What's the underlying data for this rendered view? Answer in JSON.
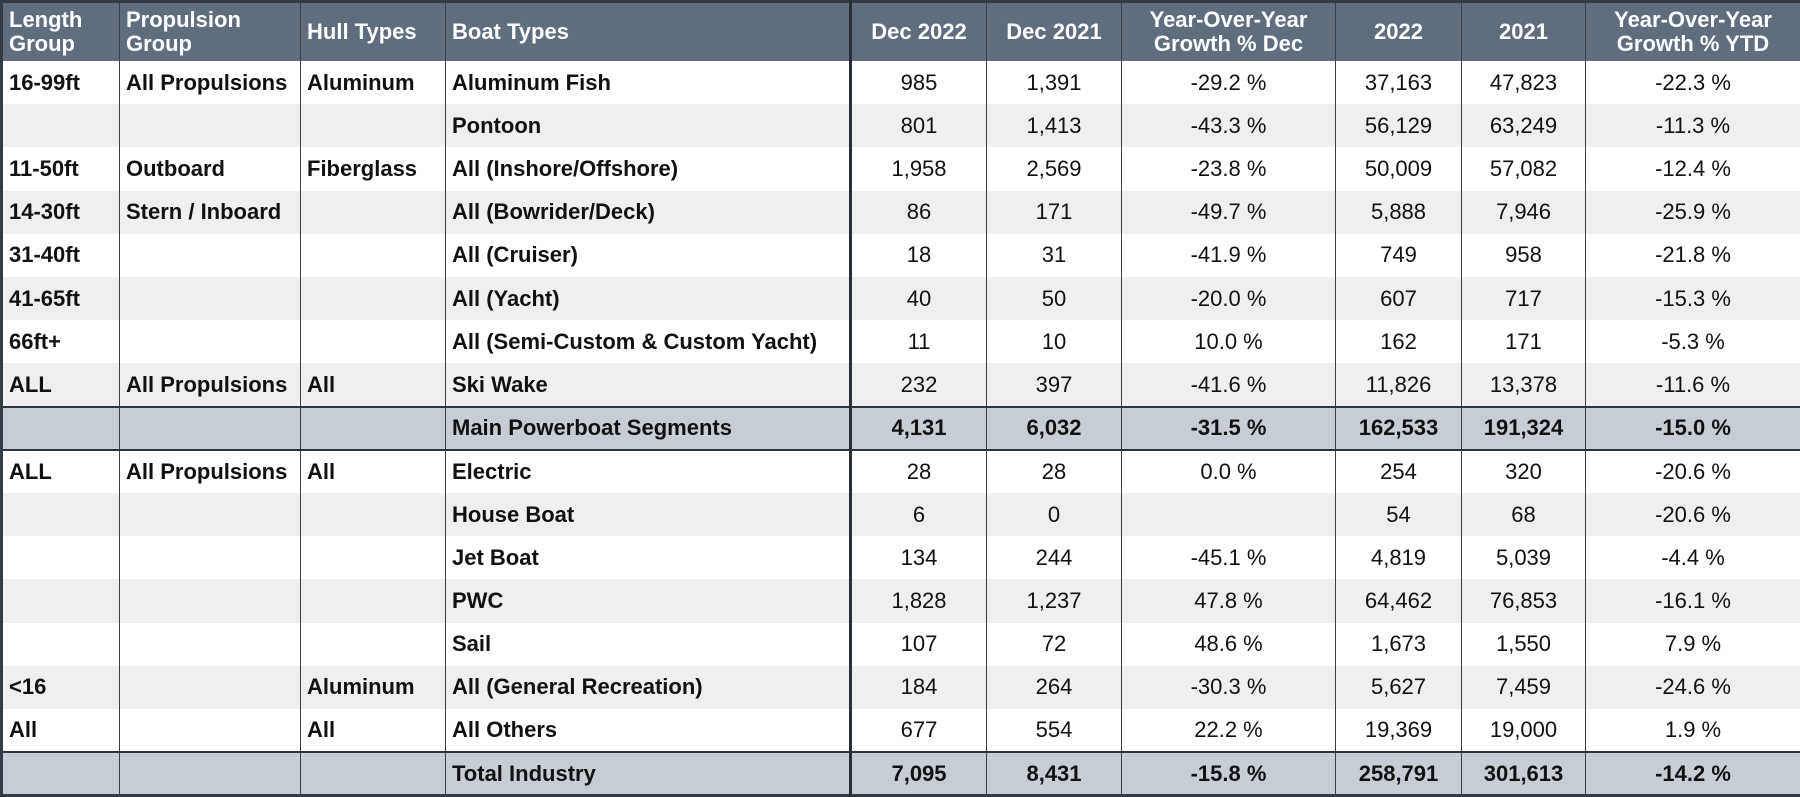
{
  "chart_data": {
    "type": "table",
    "columns": [
      "Length Group",
      "Propulsion Group",
      "Hull Types",
      "Boat Types",
      "Dec 2022",
      "Dec 2021",
      "Year-Over-Year Growth % Dec",
      "2022",
      "2021",
      "Year-Over-Year Growth % YTD"
    ],
    "rows": [
      [
        "16-99ft",
        "All Propulsions",
        "Aluminum",
        "Aluminum Fish",
        "985",
        "1,391",
        "-29.2 %",
        "37,163",
        "47,823",
        "-22.3 %"
      ],
      [
        "",
        "",
        "",
        "Pontoon",
        "801",
        "1,413",
        "-43.3 %",
        "56,129",
        "63,249",
        "-11.3 %"
      ],
      [
        "11-50ft",
        "Outboard",
        "Fiberglass",
        "All (Inshore/Offshore)",
        "1,958",
        "2,569",
        "-23.8 %",
        "50,009",
        "57,082",
        "-12.4 %"
      ],
      [
        "14-30ft",
        "Stern / Inboard",
        "",
        "All (Bowrider/Deck)",
        "86",
        "171",
        "-49.7 %",
        "5,888",
        "7,946",
        "-25.9 %"
      ],
      [
        "31-40ft",
        "",
        "",
        "All (Cruiser)",
        "18",
        "31",
        "-41.9 %",
        "749",
        "958",
        "-21.8 %"
      ],
      [
        "41-65ft",
        "",
        "",
        "All (Yacht)",
        "40",
        "50",
        "-20.0 %",
        "607",
        "717",
        "-15.3 %"
      ],
      [
        "66ft+",
        "",
        "",
        "All (Semi-Custom & Custom Yacht)",
        "11",
        "10",
        "10.0 %",
        "162",
        "171",
        "-5.3 %"
      ],
      [
        "ALL",
        "All Propulsions",
        "All",
        "Ski Wake",
        "232",
        "397",
        "-41.6 %",
        "11,826",
        "13,378",
        "-11.6 %"
      ],
      [
        "",
        "",
        "",
        "Main Powerboat Segments",
        "4,131",
        "6,032",
        "-31.5 %",
        "162,533",
        "191,324",
        "-15.0 %"
      ],
      [
        "ALL",
        "All Propulsions",
        "All",
        "Electric",
        "28",
        "28",
        "0.0 %",
        "254",
        "320",
        "-20.6 %"
      ],
      [
        "",
        "",
        "",
        "House Boat",
        "6",
        "0",
        "",
        "54",
        "68",
        "-20.6 %"
      ],
      [
        "",
        "",
        "",
        "Jet Boat",
        "134",
        "244",
        "-45.1 %",
        "4,819",
        "5,039",
        "-4.4 %"
      ],
      [
        "",
        "",
        "",
        "PWC",
        "1,828",
        "1,237",
        "47.8 %",
        "64,462",
        "76,853",
        "-16.1 %"
      ],
      [
        "",
        "",
        "",
        "Sail",
        "107",
        "72",
        "48.6 %",
        "1,673",
        "1,550",
        "7.9 %"
      ],
      [
        "<16",
        "",
        "Aluminum",
        "All (General Recreation)",
        "184",
        "264",
        "-30.3 %",
        "5,627",
        "7,459",
        "-24.6 %"
      ],
      [
        "All",
        "",
        "All",
        "All Others",
        "677",
        "554",
        "22.2 %",
        "19,369",
        "19,000",
        "1.9 %"
      ],
      [
        "",
        "",
        "",
        "Total Industry",
        "7,095",
        "8,431",
        "-15.8 %",
        "258,791",
        "301,613",
        "-14.2 %"
      ]
    ],
    "summary_rows": [
      "Main Powerboat Segments",
      "Total Industry"
    ]
  },
  "colors": {
    "header_bg": "#5f6d7d",
    "header_text": "#ffffff",
    "summary_bg": "#c6cdd5",
    "stripe_bg": "#efefef"
  }
}
